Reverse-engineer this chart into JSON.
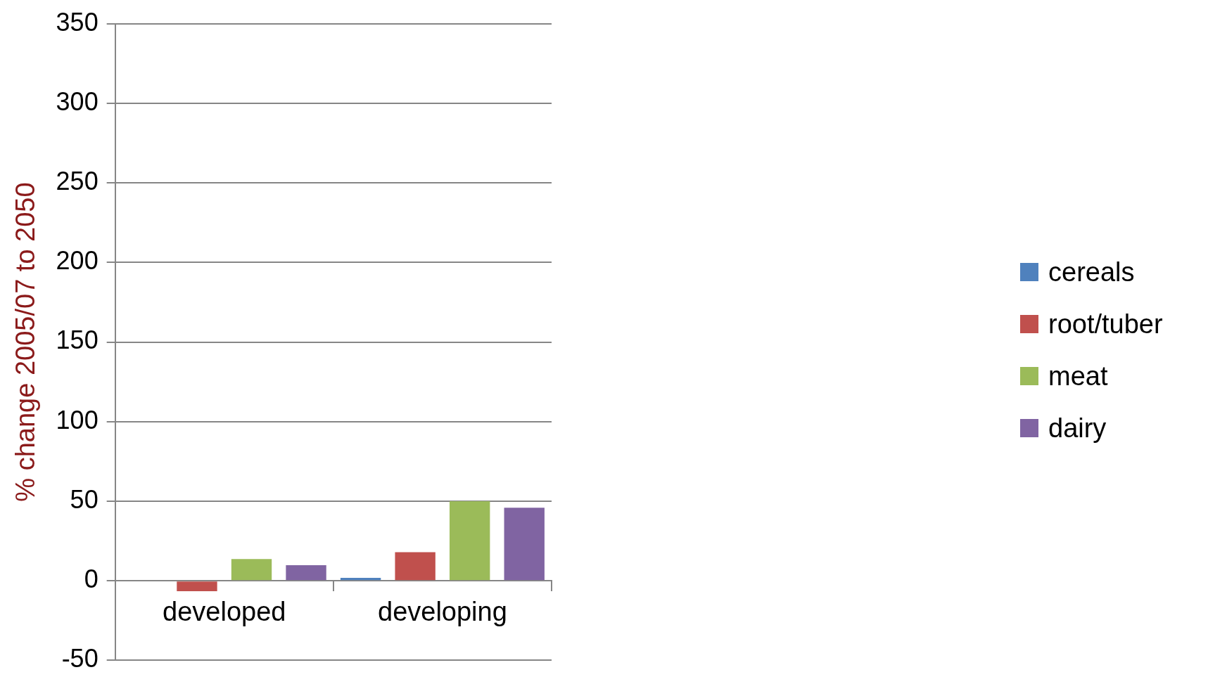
{
  "chart_data": {
    "type": "bar",
    "ylabel": "% change 2005/07 to 2050",
    "categories": [
      "developed",
      "developing"
    ],
    "series": [
      {
        "name": "cereals",
        "color": "#4f81bd",
        "values": [
          -0.5,
          1.8
        ]
      },
      {
        "name": "root/tuber",
        "color": "#c0504d",
        "values": [
          -6.5,
          18
        ]
      },
      {
        "name": "meat",
        "color": "#9bbb59",
        "values": [
          13.7,
          50
        ]
      },
      {
        "name": "dairy",
        "color": "#8064a2",
        "values": [
          9.8,
          45.9
        ]
      }
    ],
    "ylim": [
      -50,
      350
    ],
    "yticks": [
      -50,
      0,
      50,
      100,
      150,
      200,
      250,
      300,
      350
    ],
    "grid": "y",
    "legend": "right"
  }
}
